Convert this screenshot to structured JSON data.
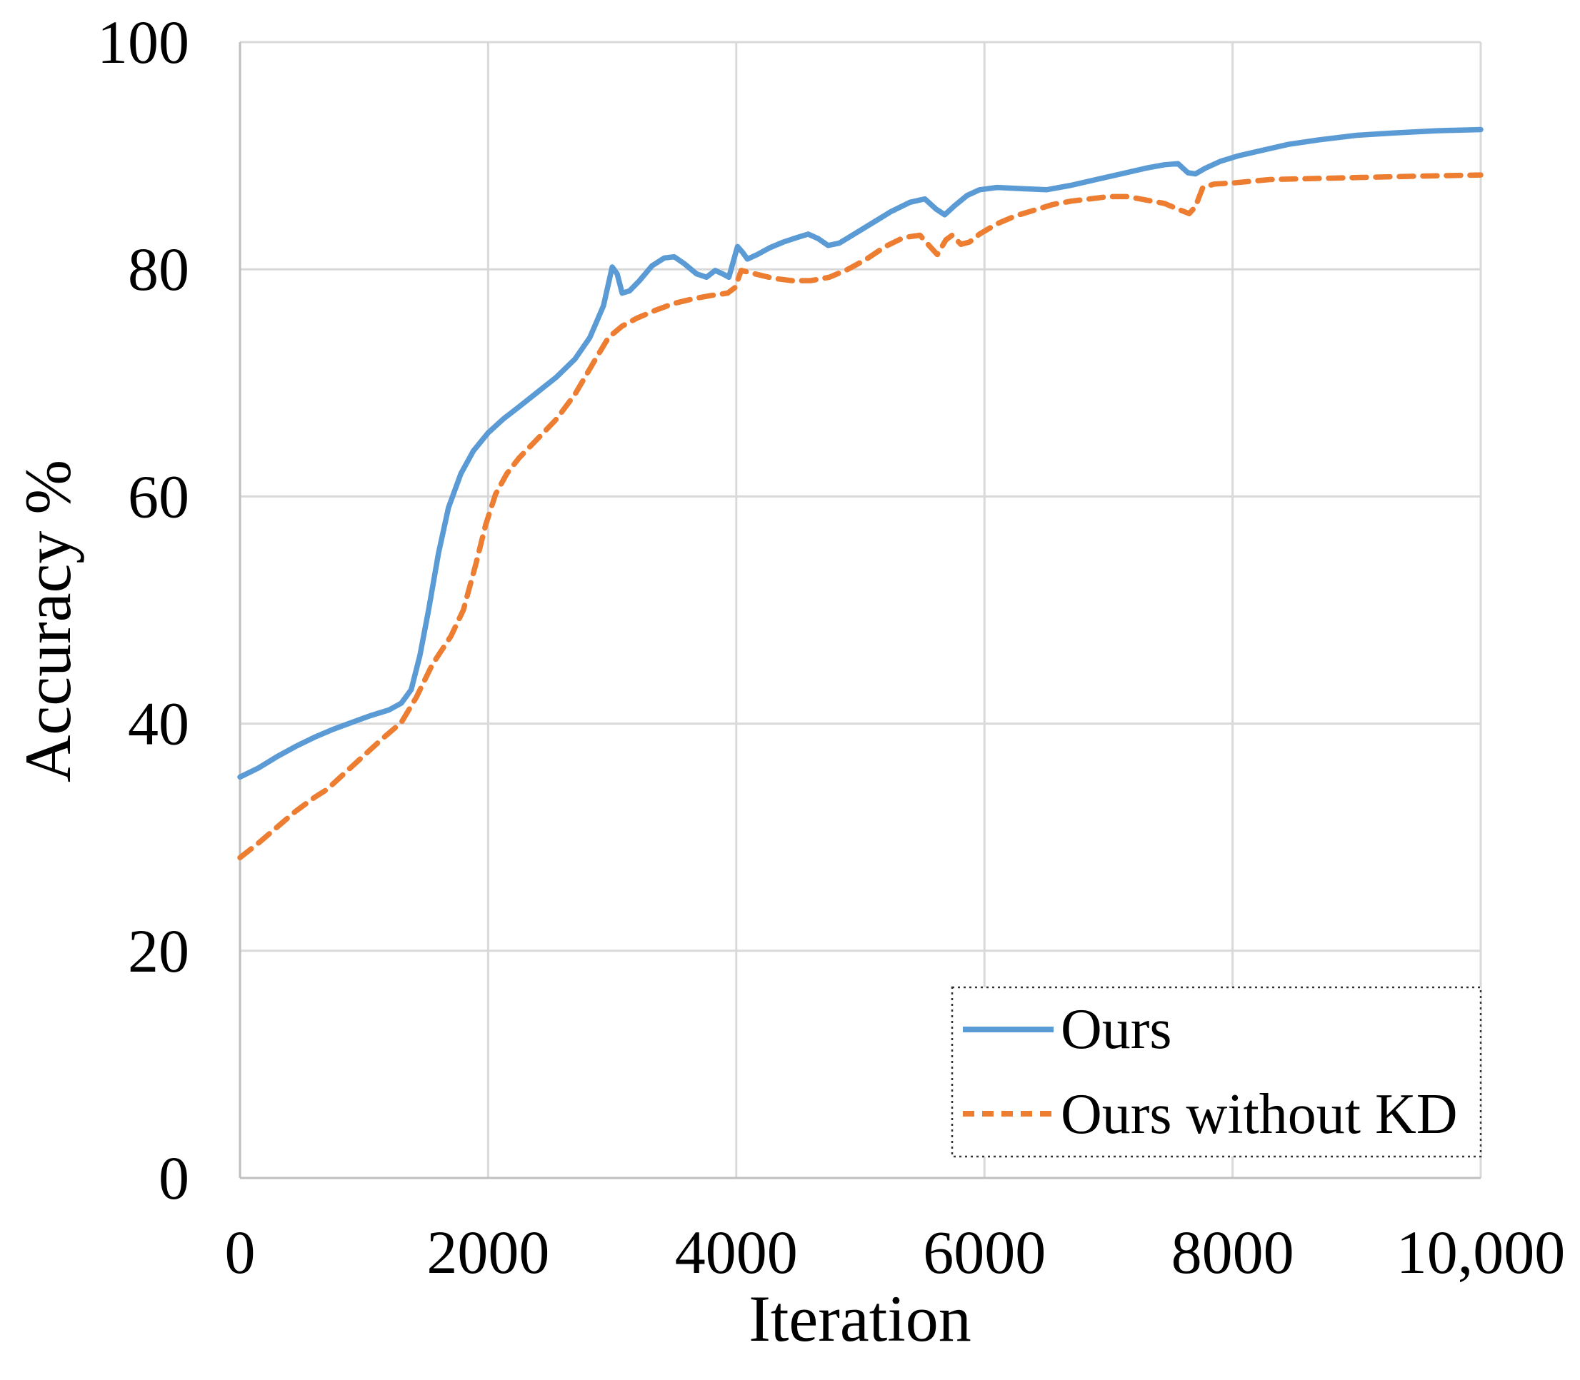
{
  "figure": {
    "background": "#ffffff",
    "grid_color": "#d9d9d9",
    "axis_color": "#bfbfbf",
    "legend_border_color": "#333333",
    "text_color": "#000000"
  },
  "chart_data": {
    "type": "line",
    "title": "",
    "xlabel": "Iteration",
    "ylabel": "Accuracy %",
    "xlim": [
      0,
      10000
    ],
    "ylim": [
      0,
      100
    ],
    "grid": true,
    "legend_position": "lower right",
    "x_ticks": {
      "values": [
        0,
        2000,
        4000,
        6000,
        8000,
        10000
      ],
      "labels": [
        "0",
        "2000",
        "4000",
        "6000",
        "8000",
        "10,000"
      ]
    },
    "y_ticks": {
      "values": [
        100,
        80,
        60,
        40,
        20,
        0
      ],
      "labels": [
        "100",
        "80",
        "60",
        "40",
        "20",
        "0"
      ]
    },
    "series": [
      {
        "name": "Ours",
        "color": "#5B9BD5",
        "style": "solid",
        "points": [
          [
            0,
            35.3
          ],
          [
            150,
            36.1
          ],
          [
            300,
            37.1
          ],
          [
            450,
            38.0
          ],
          [
            600,
            38.8
          ],
          [
            750,
            39.5
          ],
          [
            900,
            40.1
          ],
          [
            1050,
            40.7
          ],
          [
            1200,
            41.2
          ],
          [
            1300,
            41.8
          ],
          [
            1380,
            43.0
          ],
          [
            1450,
            46.0
          ],
          [
            1520,
            50.0
          ],
          [
            1600,
            55.0
          ],
          [
            1680,
            59.0
          ],
          [
            1780,
            62.0
          ],
          [
            1880,
            64.0
          ],
          [
            2000,
            65.6
          ],
          [
            2120,
            66.8
          ],
          [
            2250,
            67.9
          ],
          [
            2400,
            69.2
          ],
          [
            2550,
            70.5
          ],
          [
            2700,
            72.1
          ],
          [
            2820,
            74.0
          ],
          [
            2930,
            76.8
          ],
          [
            3000,
            80.2
          ],
          [
            3040,
            79.6
          ],
          [
            3080,
            77.9
          ],
          [
            3140,
            78.1
          ],
          [
            3220,
            79.0
          ],
          [
            3320,
            80.3
          ],
          [
            3420,
            81.0
          ],
          [
            3500,
            81.1
          ],
          [
            3580,
            80.5
          ],
          [
            3680,
            79.6
          ],
          [
            3760,
            79.3
          ],
          [
            3830,
            79.9
          ],
          [
            3890,
            79.6
          ],
          [
            3940,
            79.3
          ],
          [
            4010,
            82.0
          ],
          [
            4050,
            81.5
          ],
          [
            4090,
            80.9
          ],
          [
            4170,
            81.3
          ],
          [
            4270,
            81.9
          ],
          [
            4380,
            82.4
          ],
          [
            4490,
            82.8
          ],
          [
            4580,
            83.1
          ],
          [
            4660,
            82.7
          ],
          [
            4740,
            82.1
          ],
          [
            4830,
            82.3
          ],
          [
            4950,
            83.1
          ],
          [
            5100,
            84.1
          ],
          [
            5250,
            85.1
          ],
          [
            5400,
            85.9
          ],
          [
            5520,
            86.2
          ],
          [
            5610,
            85.3
          ],
          [
            5680,
            84.8
          ],
          [
            5760,
            85.6
          ],
          [
            5860,
            86.5
          ],
          [
            5960,
            87.0
          ],
          [
            6100,
            87.2
          ],
          [
            6300,
            87.1
          ],
          [
            6500,
            87.0
          ],
          [
            6700,
            87.4
          ],
          [
            6900,
            87.9
          ],
          [
            7100,
            88.4
          ],
          [
            7300,
            88.9
          ],
          [
            7450,
            89.2
          ],
          [
            7560,
            89.3
          ],
          [
            7640,
            88.5
          ],
          [
            7700,
            88.4
          ],
          [
            7780,
            88.9
          ],
          [
            7900,
            89.5
          ],
          [
            8050,
            90.0
          ],
          [
            8250,
            90.5
          ],
          [
            8450,
            91.0
          ],
          [
            8700,
            91.4
          ],
          [
            9000,
            91.8
          ],
          [
            9300,
            92.0
          ],
          [
            9650,
            92.2
          ],
          [
            10000,
            92.3
          ]
        ]
      },
      {
        "name": "Ours without KD",
        "color": "#ED7D31",
        "style": "dashed",
        "points": [
          [
            0,
            28.2
          ],
          [
            150,
            29.5
          ],
          [
            300,
            30.9
          ],
          [
            450,
            32.3
          ],
          [
            600,
            33.5
          ],
          [
            700,
            34.2
          ],
          [
            850,
            35.7
          ],
          [
            1000,
            37.2
          ],
          [
            1150,
            38.7
          ],
          [
            1300,
            40.1
          ],
          [
            1420,
            42.3
          ],
          [
            1550,
            45.2
          ],
          [
            1700,
            47.7
          ],
          [
            1800,
            50.0
          ],
          [
            1900,
            54.0
          ],
          [
            1980,
            57.5
          ],
          [
            2060,
            60.2
          ],
          [
            2150,
            62.0
          ],
          [
            2250,
            63.4
          ],
          [
            2400,
            65.1
          ],
          [
            2550,
            66.8
          ],
          [
            2700,
            69.0
          ],
          [
            2850,
            71.8
          ],
          [
            2970,
            74.0
          ],
          [
            3080,
            75.0
          ],
          [
            3200,
            75.7
          ],
          [
            3350,
            76.4
          ],
          [
            3500,
            77.0
          ],
          [
            3650,
            77.4
          ],
          [
            3800,
            77.7
          ],
          [
            3930,
            77.9
          ],
          [
            3990,
            78.4
          ],
          [
            4040,
            79.9
          ],
          [
            4150,
            79.6
          ],
          [
            4300,
            79.2
          ],
          [
            4450,
            79.0
          ],
          [
            4600,
            79.0
          ],
          [
            4750,
            79.3
          ],
          [
            4900,
            80.0
          ],
          [
            5050,
            80.9
          ],
          [
            5200,
            82.0
          ],
          [
            5350,
            82.8
          ],
          [
            5480,
            83.0
          ],
          [
            5570,
            81.9
          ],
          [
            5620,
            81.3
          ],
          [
            5690,
            82.6
          ],
          [
            5740,
            83.0
          ],
          [
            5810,
            82.2
          ],
          [
            5880,
            82.4
          ],
          [
            5960,
            83.1
          ],
          [
            6100,
            84.0
          ],
          [
            6250,
            84.7
          ],
          [
            6400,
            85.2
          ],
          [
            6550,
            85.7
          ],
          [
            6700,
            86.0
          ],
          [
            6850,
            86.2
          ],
          [
            7000,
            86.4
          ],
          [
            7150,
            86.4
          ],
          [
            7300,
            86.1
          ],
          [
            7450,
            85.8
          ],
          [
            7560,
            85.3
          ],
          [
            7650,
            84.9
          ],
          [
            7700,
            85.5
          ],
          [
            7760,
            87.2
          ],
          [
            7850,
            87.5
          ],
          [
            8000,
            87.6
          ],
          [
            8300,
            87.9
          ],
          [
            8700,
            88.0
          ],
          [
            9100,
            88.1
          ],
          [
            9500,
            88.2
          ],
          [
            10000,
            88.3
          ]
        ]
      }
    ]
  }
}
